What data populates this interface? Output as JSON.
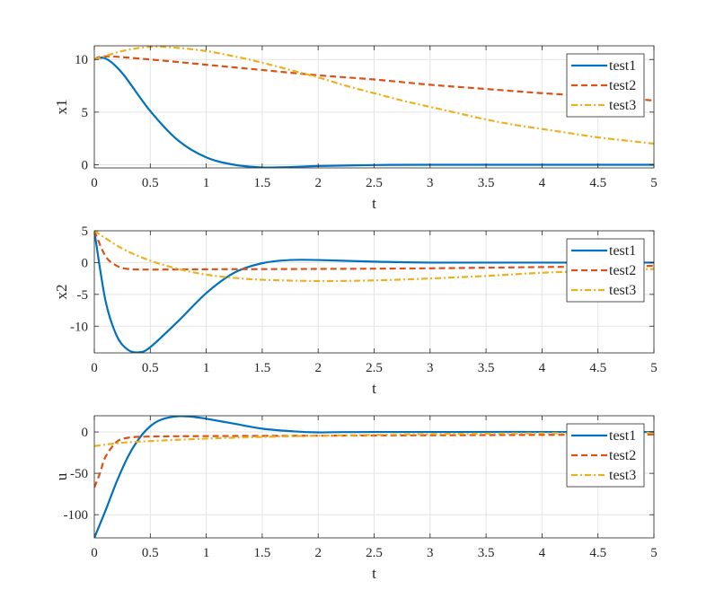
{
  "colors": {
    "test1": "#0072BD",
    "test2": "#D95319",
    "test3": "#EDB120"
  },
  "chart_data": [
    {
      "type": "line",
      "xlabel": "t",
      "ylabel": "x1",
      "xlim": [
        0,
        5
      ],
      "ylim": [
        -0.3,
        11.3
      ],
      "xticks": [
        0,
        0.5,
        1,
        1.5,
        2,
        2.5,
        3,
        3.5,
        4,
        4.5,
        5
      ],
      "xtick_labels": [
        "0",
        "0.5",
        "1",
        "1.5",
        "2",
        "2.5",
        "3",
        "3.5",
        "4",
        "4.5",
        "5"
      ],
      "yticks": [
        0,
        5,
        10
      ],
      "ytick_labels": [
        "0",
        "5",
        "10"
      ],
      "grid": true,
      "legend_position": "top-right",
      "series": [
        {
          "name": "test1",
          "style": "solid",
          "t": [
            0,
            0.1,
            0.25,
            0.5,
            0.75,
            1,
            1.25,
            1.5,
            1.75,
            2,
            2.5,
            3,
            4,
            5
          ],
          "y": [
            10,
            10.1,
            8.7,
            5.1,
            2.3,
            0.7,
            0.0,
            -0.25,
            -0.22,
            -0.12,
            -0.03,
            0,
            0,
            0
          ]
        },
        {
          "name": "test2",
          "style": "dashed",
          "t": [
            0,
            0.1,
            0.5,
            1,
            1.5,
            2,
            2.5,
            3,
            3.5,
            4,
            4.5,
            5
          ],
          "y": [
            10,
            10.3,
            10.0,
            9.5,
            9.0,
            8.5,
            8.1,
            7.6,
            7.2,
            6.8,
            6.5,
            6.1
          ]
        },
        {
          "name": "test3",
          "style": "dashdot",
          "t": [
            0,
            0.25,
            0.5,
            0.75,
            1,
            1.25,
            1.5,
            1.75,
            2,
            2.25,
            2.5,
            2.75,
            3,
            3.25,
            3.5,
            3.75,
            4,
            4.25,
            4.5,
            4.75,
            5
          ],
          "y": [
            10,
            10.8,
            11.2,
            11.1,
            10.8,
            10.3,
            9.7,
            9.0,
            8.3,
            7.5,
            6.8,
            6.1,
            5.5,
            4.9,
            4.3,
            3.8,
            3.4,
            3.0,
            2.6,
            2.3,
            2.0
          ]
        }
      ]
    },
    {
      "type": "line",
      "xlabel": "t",
      "ylabel": "x2",
      "xlim": [
        0,
        5
      ],
      "ylim": [
        -14.2,
        5
      ],
      "xticks": [
        0,
        0.5,
        1,
        1.5,
        2,
        2.5,
        3,
        3.5,
        4,
        4.5,
        5
      ],
      "xtick_labels": [
        "0",
        "0.5",
        "1",
        "1.5",
        "2",
        "2.5",
        "3",
        "3.5",
        "4",
        "4.5",
        "5"
      ],
      "yticks": [
        -10,
        -5,
        0,
        5
      ],
      "ytick_labels": [
        "-10",
        "-5",
        "0",
        "5"
      ],
      "grid": true,
      "legend_position": "top-right",
      "series": [
        {
          "name": "test1",
          "style": "solid",
          "t": [
            0,
            0.1,
            0.2,
            0.3,
            0.4,
            0.5,
            0.75,
            1,
            1.25,
            1.5,
            1.75,
            2,
            2.5,
            3,
            4,
            5
          ],
          "y": [
            5,
            -6,
            -11.5,
            -13.7,
            -14.1,
            -13.3,
            -9.2,
            -4.8,
            -1.6,
            -0.1,
            0.4,
            0.4,
            0.15,
            0,
            0,
            0
          ]
        },
        {
          "name": "test2",
          "style": "dashed",
          "t": [
            0,
            0.1,
            0.2,
            0.3,
            0.5,
            1,
            2,
            3,
            4,
            4.75,
            5
          ],
          "y": [
            5,
            1,
            -0.5,
            -1,
            -1.1,
            -1.05,
            -1,
            -0.9,
            -0.7,
            -0.6,
            -0.5
          ]
        },
        {
          "name": "test3",
          "style": "dashdot",
          "t": [
            0,
            0.25,
            0.5,
            0.75,
            1,
            1.25,
            1.5,
            2,
            2.5,
            3,
            3.5,
            4,
            4.5,
            5
          ],
          "y": [
            5,
            2.2,
            0.3,
            -1.0,
            -1.9,
            -2.4,
            -2.7,
            -2.9,
            -2.8,
            -2.5,
            -2.1,
            -1.6,
            -1.3,
            -1.0
          ]
        }
      ]
    },
    {
      "type": "line",
      "xlabel": "t",
      "ylabel": "u",
      "xlim": [
        0,
        5
      ],
      "ylim": [
        -128,
        19.6
      ],
      "xticks": [
        0,
        0.5,
        1,
        1.5,
        2,
        2.5,
        3,
        3.5,
        4,
        4.5,
        5
      ],
      "xtick_labels": [
        "0",
        "0.5",
        "1",
        "1.5",
        "2",
        "2.5",
        "3",
        "3.5",
        "4",
        "4.5",
        "5"
      ],
      "yticks": [
        -100,
        -50,
        0
      ],
      "ytick_labels": [
        "-100",
        "-50",
        "0"
      ],
      "grid": true,
      "legend_position": "top-right",
      "series": [
        {
          "name": "test1",
          "style": "solid",
          "t": [
            0,
            0.1,
            0.2,
            0.3,
            0.4,
            0.5,
            0.6,
            0.75,
            0.9,
            1,
            1.25,
            1.5,
            1.75,
            2,
            2.5,
            5
          ],
          "y": [
            -128,
            -95,
            -60,
            -30,
            -8,
            7,
            15,
            19,
            18,
            16,
            10,
            4,
            1,
            -0.5,
            0,
            0
          ]
        },
        {
          "name": "test2",
          "style": "dashed",
          "t": [
            0,
            0.05,
            0.1,
            0.2,
            0.3,
            0.5,
            1,
            2,
            3,
            4,
            5
          ],
          "y": [
            -67,
            -50,
            -30,
            -12,
            -7,
            -5.5,
            -5,
            -4.5,
            -4,
            -3.5,
            -3
          ]
        },
        {
          "name": "test3",
          "style": "dashdot",
          "t": [
            0,
            0.25,
            0.5,
            1,
            1.5,
            2,
            2.5,
            3,
            3.5,
            4,
            5
          ],
          "y": [
            -17,
            -13,
            -11,
            -8,
            -6,
            -4.5,
            -3.5,
            -2.5,
            -2,
            -1.5,
            -1
          ]
        }
      ]
    }
  ]
}
